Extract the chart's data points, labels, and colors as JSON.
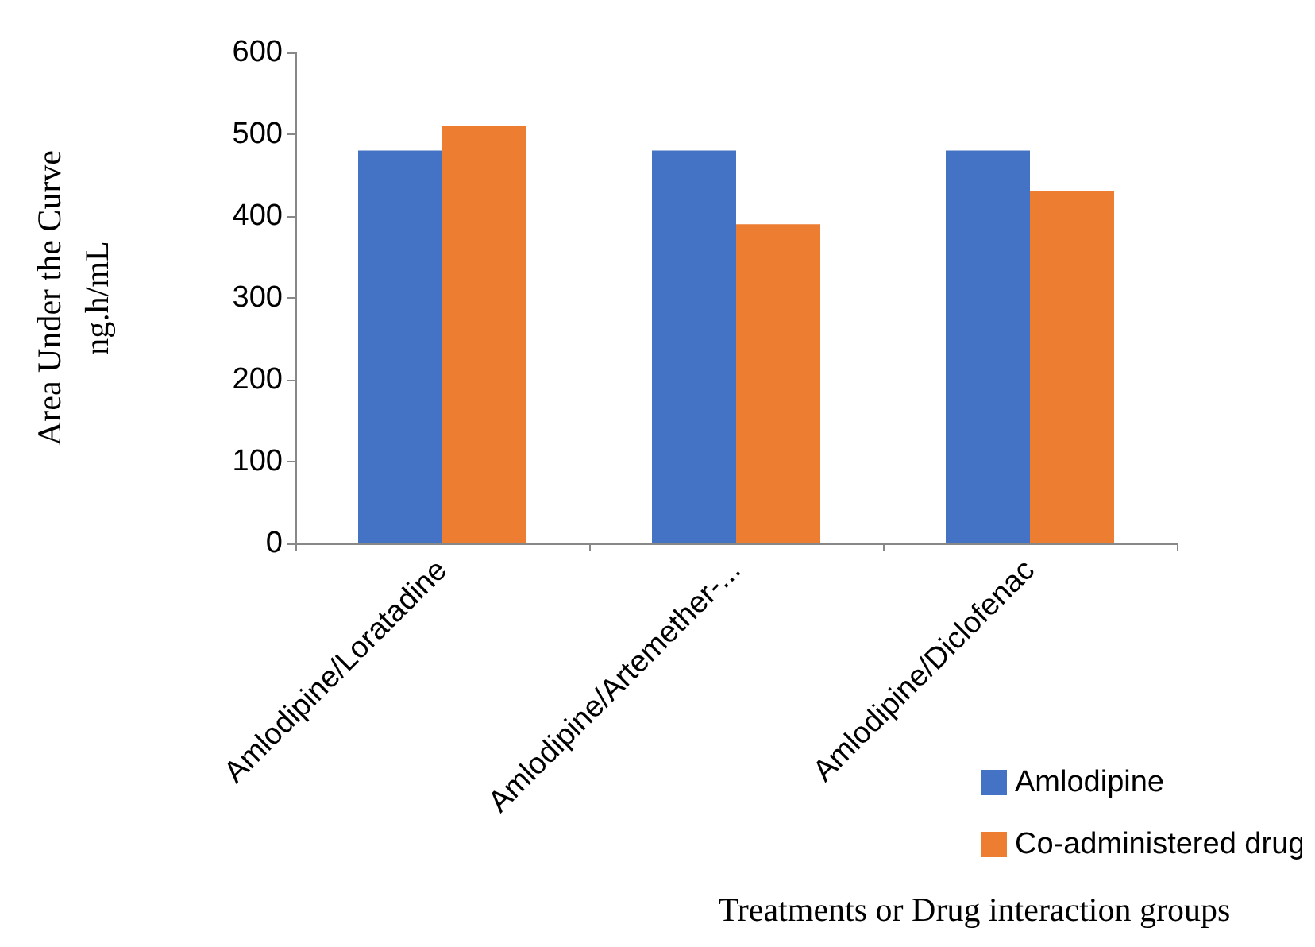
{
  "chart_data": {
    "type": "bar",
    "categories": [
      "Amlodipine/Loratadine",
      "Amlodipine/Artemether-...",
      "Amlodipine/Diclofenac"
    ],
    "series": [
      {
        "name": "Amlodipine",
        "color": "#4472c4",
        "values": [
          480,
          480,
          480
        ]
      },
      {
        "name": "Co-administered drug",
        "color": "#ed7d31",
        "values": [
          510,
          390,
          430
        ]
      }
    ],
    "ylabel": "Area Under the Curve\nng.h/mL",
    "xlabel": "Treatments or Drug interaction groups",
    "ylim": [
      0,
      600
    ],
    "yticks": [
      0,
      100,
      200,
      300,
      400,
      500,
      600
    ],
    "grid": false,
    "legend": "bottom right"
  }
}
